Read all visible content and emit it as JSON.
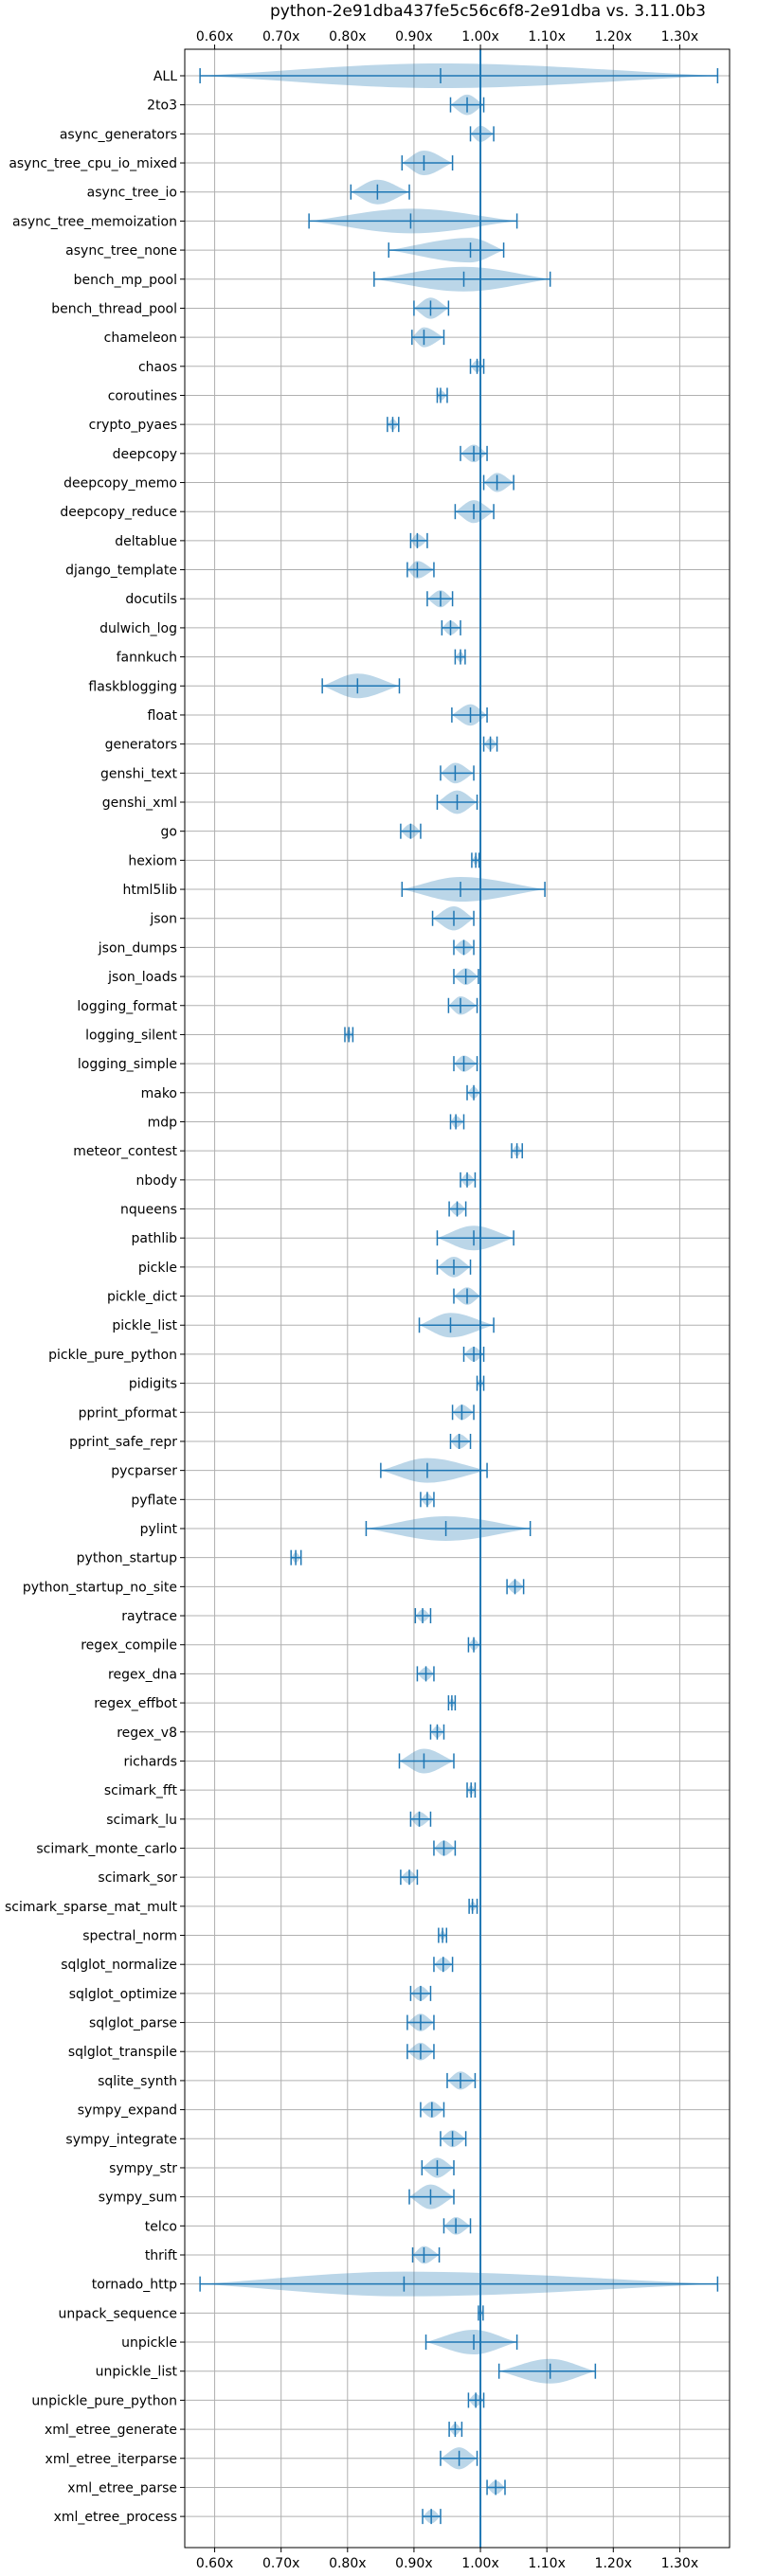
{
  "chart_data": {
    "type": "violin",
    "title": "python-2e91dba437fe5c56c6f8-2e91dba vs. 3.11.0b3",
    "xlim": [
      0.555,
      1.375
    ],
    "xticks": [
      0.6,
      0.7,
      0.8,
      0.9,
      1.0,
      1.1,
      1.2,
      1.3
    ],
    "xtick_labels": [
      "0.60x",
      "0.70x",
      "0.80x",
      "0.90x",
      "1.00x",
      "1.10x",
      "1.20x",
      "1.30x"
    ],
    "reference_line": 1.0,
    "grid": true,
    "orientation": "horizontal",
    "colors": {
      "violin": "#1f77b4",
      "grid": "#b0b0b0"
    },
    "benchmarks": [
      {
        "name": "ALL",
        "min": 0.578,
        "max": 1.357,
        "mean": 0.94
      },
      {
        "name": "2to3",
        "min": 0.955,
        "max": 1.005,
        "mean": 0.98
      },
      {
        "name": "async_generators",
        "min": 0.985,
        "max": 1.02,
        "mean": 1.0
      },
      {
        "name": "async_tree_cpu_io_mixed",
        "min": 0.882,
        "max": 0.958,
        "mean": 0.915
      },
      {
        "name": "async_tree_io",
        "min": 0.805,
        "max": 0.893,
        "mean": 0.845
      },
      {
        "name": "async_tree_memoization",
        "min": 0.742,
        "max": 1.055,
        "mean": 0.895
      },
      {
        "name": "async_tree_none",
        "min": 0.862,
        "max": 1.035,
        "mean": 0.985
      },
      {
        "name": "bench_mp_pool",
        "min": 0.84,
        "max": 1.105,
        "mean": 0.975
      },
      {
        "name": "bench_thread_pool",
        "min": 0.9,
        "max": 0.952,
        "mean": 0.925
      },
      {
        "name": "chameleon",
        "min": 0.897,
        "max": 0.945,
        "mean": 0.915
      },
      {
        "name": "chaos",
        "min": 0.985,
        "max": 1.005,
        "mean": 0.995
      },
      {
        "name": "coroutines",
        "min": 0.935,
        "max": 0.95,
        "mean": 0.94
      },
      {
        "name": "crypto_pyaes",
        "min": 0.86,
        "max": 0.877,
        "mean": 0.868
      },
      {
        "name": "deepcopy",
        "min": 0.97,
        "max": 1.01,
        "mean": 0.99
      },
      {
        "name": "deepcopy_memo",
        "min": 1.005,
        "max": 1.05,
        "mean": 1.025
      },
      {
        "name": "deepcopy_reduce",
        "min": 0.962,
        "max": 1.02,
        "mean": 0.99
      },
      {
        "name": "deltablue",
        "min": 0.895,
        "max": 0.92,
        "mean": 0.905
      },
      {
        "name": "django_template",
        "min": 0.89,
        "max": 0.93,
        "mean": 0.905
      },
      {
        "name": "docutils",
        "min": 0.92,
        "max": 0.958,
        "mean": 0.94
      },
      {
        "name": "dulwich_log",
        "min": 0.942,
        "max": 0.97,
        "mean": 0.955
      },
      {
        "name": "fannkuch",
        "min": 0.962,
        "max": 0.977,
        "mean": 0.97
      },
      {
        "name": "flaskblogging",
        "min": 0.762,
        "max": 0.878,
        "mean": 0.815
      },
      {
        "name": "float",
        "min": 0.957,
        "max": 1.01,
        "mean": 0.985
      },
      {
        "name": "generators",
        "min": 1.005,
        "max": 1.025,
        "mean": 1.015
      },
      {
        "name": "genshi_text",
        "min": 0.94,
        "max": 0.99,
        "mean": 0.962
      },
      {
        "name": "genshi_xml",
        "min": 0.935,
        "max": 0.995,
        "mean": 0.965
      },
      {
        "name": "go",
        "min": 0.88,
        "max": 0.91,
        "mean": 0.895
      },
      {
        "name": "hexiom",
        "min": 0.987,
        "max": 0.998,
        "mean": 0.993
      },
      {
        "name": "html5lib",
        "min": 0.882,
        "max": 1.097,
        "mean": 0.97
      },
      {
        "name": "json",
        "min": 0.928,
        "max": 0.99,
        "mean": 0.96
      },
      {
        "name": "json_dumps",
        "min": 0.96,
        "max": 0.99,
        "mean": 0.975
      },
      {
        "name": "json_loads",
        "min": 0.96,
        "max": 0.997,
        "mean": 0.978
      },
      {
        "name": "logging_format",
        "min": 0.952,
        "max": 0.995,
        "mean": 0.97
      },
      {
        "name": "logging_silent",
        "min": 0.796,
        "max": 0.808,
        "mean": 0.802
      },
      {
        "name": "logging_simple",
        "min": 0.96,
        "max": 0.995,
        "mean": 0.975
      },
      {
        "name": "mako",
        "min": 0.98,
        "max": 1.0,
        "mean": 0.99
      },
      {
        "name": "mdp",
        "min": 0.955,
        "max": 0.975,
        "mean": 0.963
      },
      {
        "name": "meteor_contest",
        "min": 1.047,
        "max": 1.063,
        "mean": 1.055
      },
      {
        "name": "nbody",
        "min": 0.97,
        "max": 0.992,
        "mean": 0.98
      },
      {
        "name": "nqueens",
        "min": 0.953,
        "max": 0.978,
        "mean": 0.965
      },
      {
        "name": "pathlib",
        "min": 0.935,
        "max": 1.05,
        "mean": 0.99
      },
      {
        "name": "pickle",
        "min": 0.935,
        "max": 0.985,
        "mean": 0.96
      },
      {
        "name": "pickle_dict",
        "min": 0.96,
        "max": 1.0,
        "mean": 0.98
      },
      {
        "name": "pickle_list",
        "min": 0.908,
        "max": 1.02,
        "mean": 0.955
      },
      {
        "name": "pickle_pure_python",
        "min": 0.975,
        "max": 1.005,
        "mean": 0.99
      },
      {
        "name": "pidigits",
        "min": 0.995,
        "max": 1.005,
        "mean": 1.0
      },
      {
        "name": "pprint_pformat",
        "min": 0.958,
        "max": 0.99,
        "mean": 0.972
      },
      {
        "name": "pprint_safe_repr",
        "min": 0.955,
        "max": 0.985,
        "mean": 0.968
      },
      {
        "name": "pycparser",
        "min": 0.85,
        "max": 1.01,
        "mean": 0.92
      },
      {
        "name": "pyflate",
        "min": 0.91,
        "max": 0.93,
        "mean": 0.92
      },
      {
        "name": "pylint",
        "min": 0.828,
        "max": 1.075,
        "mean": 0.948
      },
      {
        "name": "python_startup",
        "min": 0.715,
        "max": 0.73,
        "mean": 0.722
      },
      {
        "name": "python_startup_no_site",
        "min": 1.04,
        "max": 1.065,
        "mean": 1.052
      },
      {
        "name": "raytrace",
        "min": 0.902,
        "max": 0.925,
        "mean": 0.913
      },
      {
        "name": "regex_compile",
        "min": 0.982,
        "max": 1.0,
        "mean": 0.99
      },
      {
        "name": "regex_dna",
        "min": 0.905,
        "max": 0.93,
        "mean": 0.918
      },
      {
        "name": "regex_effbot",
        "min": 0.952,
        "max": 0.962,
        "mean": 0.957
      },
      {
        "name": "regex_v8",
        "min": 0.925,
        "max": 0.945,
        "mean": 0.935
      },
      {
        "name": "richards",
        "min": 0.878,
        "max": 0.96,
        "mean": 0.915
      },
      {
        "name": "scimark_fft",
        "min": 0.98,
        "max": 0.992,
        "mean": 0.986
      },
      {
        "name": "scimark_lu",
        "min": 0.895,
        "max": 0.925,
        "mean": 0.908
      },
      {
        "name": "scimark_monte_carlo",
        "min": 0.93,
        "max": 0.962,
        "mean": 0.945
      },
      {
        "name": "scimark_sor",
        "min": 0.88,
        "max": 0.905,
        "mean": 0.893
      },
      {
        "name": "scimark_sparse_mat_mult",
        "min": 0.983,
        "max": 0.995,
        "mean": 0.988
      },
      {
        "name": "spectral_norm",
        "min": 0.937,
        "max": 0.949,
        "mean": 0.943
      },
      {
        "name": "sqlglot_normalize",
        "min": 0.93,
        "max": 0.958,
        "mean": 0.944
      },
      {
        "name": "sqlglot_optimize",
        "min": 0.895,
        "max": 0.925,
        "mean": 0.91
      },
      {
        "name": "sqlglot_parse",
        "min": 0.89,
        "max": 0.93,
        "mean": 0.91
      },
      {
        "name": "sqlglot_transpile",
        "min": 0.89,
        "max": 0.93,
        "mean": 0.91
      },
      {
        "name": "sqlite_synth",
        "min": 0.95,
        "max": 0.992,
        "mean": 0.97
      },
      {
        "name": "sympy_expand",
        "min": 0.91,
        "max": 0.945,
        "mean": 0.927
      },
      {
        "name": "sympy_integrate",
        "min": 0.94,
        "max": 0.978,
        "mean": 0.958
      },
      {
        "name": "sympy_str",
        "min": 0.912,
        "max": 0.96,
        "mean": 0.935
      },
      {
        "name": "sympy_sum",
        "min": 0.893,
        "max": 0.96,
        "mean": 0.925
      },
      {
        "name": "telco",
        "min": 0.945,
        "max": 0.985,
        "mean": 0.963
      },
      {
        "name": "thrift",
        "min": 0.898,
        "max": 0.938,
        "mean": 0.915
      },
      {
        "name": "tornado_http",
        "min": 0.578,
        "max": 1.357,
        "mean": 0.885
      },
      {
        "name": "unpack_sequence",
        "min": 0.997,
        "max": 1.004,
        "mean": 1.0
      },
      {
        "name": "unpickle",
        "min": 0.918,
        "max": 1.055,
        "mean": 0.99
      },
      {
        "name": "unpickle_list",
        "min": 1.028,
        "max": 1.173,
        "mean": 1.105
      },
      {
        "name": "unpickle_pure_python",
        "min": 0.982,
        "max": 1.005,
        "mean": 0.993
      },
      {
        "name": "xml_etree_generate",
        "min": 0.953,
        "max": 0.972,
        "mean": 0.962
      },
      {
        "name": "xml_etree_iterparse",
        "min": 0.94,
        "max": 0.995,
        "mean": 0.968
      },
      {
        "name": "xml_etree_parse",
        "min": 1.01,
        "max": 1.037,
        "mean": 1.023
      },
      {
        "name": "xml_etree_process",
        "min": 0.913,
        "max": 0.94,
        "mean": 0.926
      }
    ]
  }
}
